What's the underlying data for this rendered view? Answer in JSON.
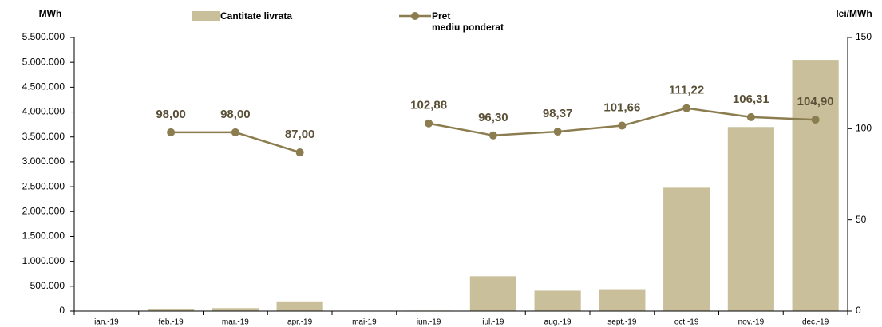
{
  "chart_data": {
    "type": "bar_line",
    "ylabel": "MWh",
    "y2label": "lei/MWh",
    "categories": [
      "ian.-19",
      "feb.-19",
      "mar.-19",
      "apr.-19",
      "mai-19",
      "iun.-19",
      "iul.-19",
      "aug.-19",
      "sept.-19",
      "oct.-19",
      "nov.-19",
      "dec.-19"
    ],
    "series": [
      {
        "name": "Cantitate livrata",
        "type": "bar",
        "color": "#c9c09b",
        "values": [
          null,
          40000,
          60000,
          180000,
          null,
          10000,
          700000,
          410000,
          440000,
          2480000,
          3700000,
          5050000
        ]
      },
      {
        "name": "Pret\nmediu ponderat",
        "type": "line",
        "axis": "y2",
        "color": "#8b7d4f",
        "values": [
          null,
          98.0,
          98.0,
          87.0,
          null,
          102.88,
          96.3,
          98.37,
          101.66,
          111.22,
          106.31,
          104.9
        ],
        "value_labels": [
          null,
          "98,00",
          "98,00",
          "87,00",
          null,
          "102,88",
          "96,30",
          "98,37",
          "101,66",
          "111,22",
          "106,31",
          "104,90"
        ]
      }
    ],
    "ylim": [
      0,
      5500000
    ],
    "yticks": [
      0,
      {
        "value": 500000,
        "label": "500.000"
      },
      {
        "value": 1000000,
        "label": "1.000.000"
      },
      {
        "value": 1500000,
        "label": "1.500.000"
      },
      {
        "value": 2000000,
        "label": "2.000.000"
      },
      {
        "value": 2500000,
        "label": "2.500.000"
      },
      {
        "value": 3000000,
        "label": "3.000.000"
      },
      {
        "value": 3500000,
        "label": "3.500.000"
      },
      {
        "value": 4000000,
        "label": "4.000.000"
      },
      {
        "value": 4500000,
        "label": "4.500.000"
      },
      {
        "value": 5000000,
        "label": "5.000.000"
      },
      {
        "value": 5500000,
        "label": "5.500.000"
      }
    ],
    "y2lim": [
      0,
      150
    ],
    "y2ticks": [
      0,
      50,
      100,
      150
    ],
    "grid": false
  }
}
